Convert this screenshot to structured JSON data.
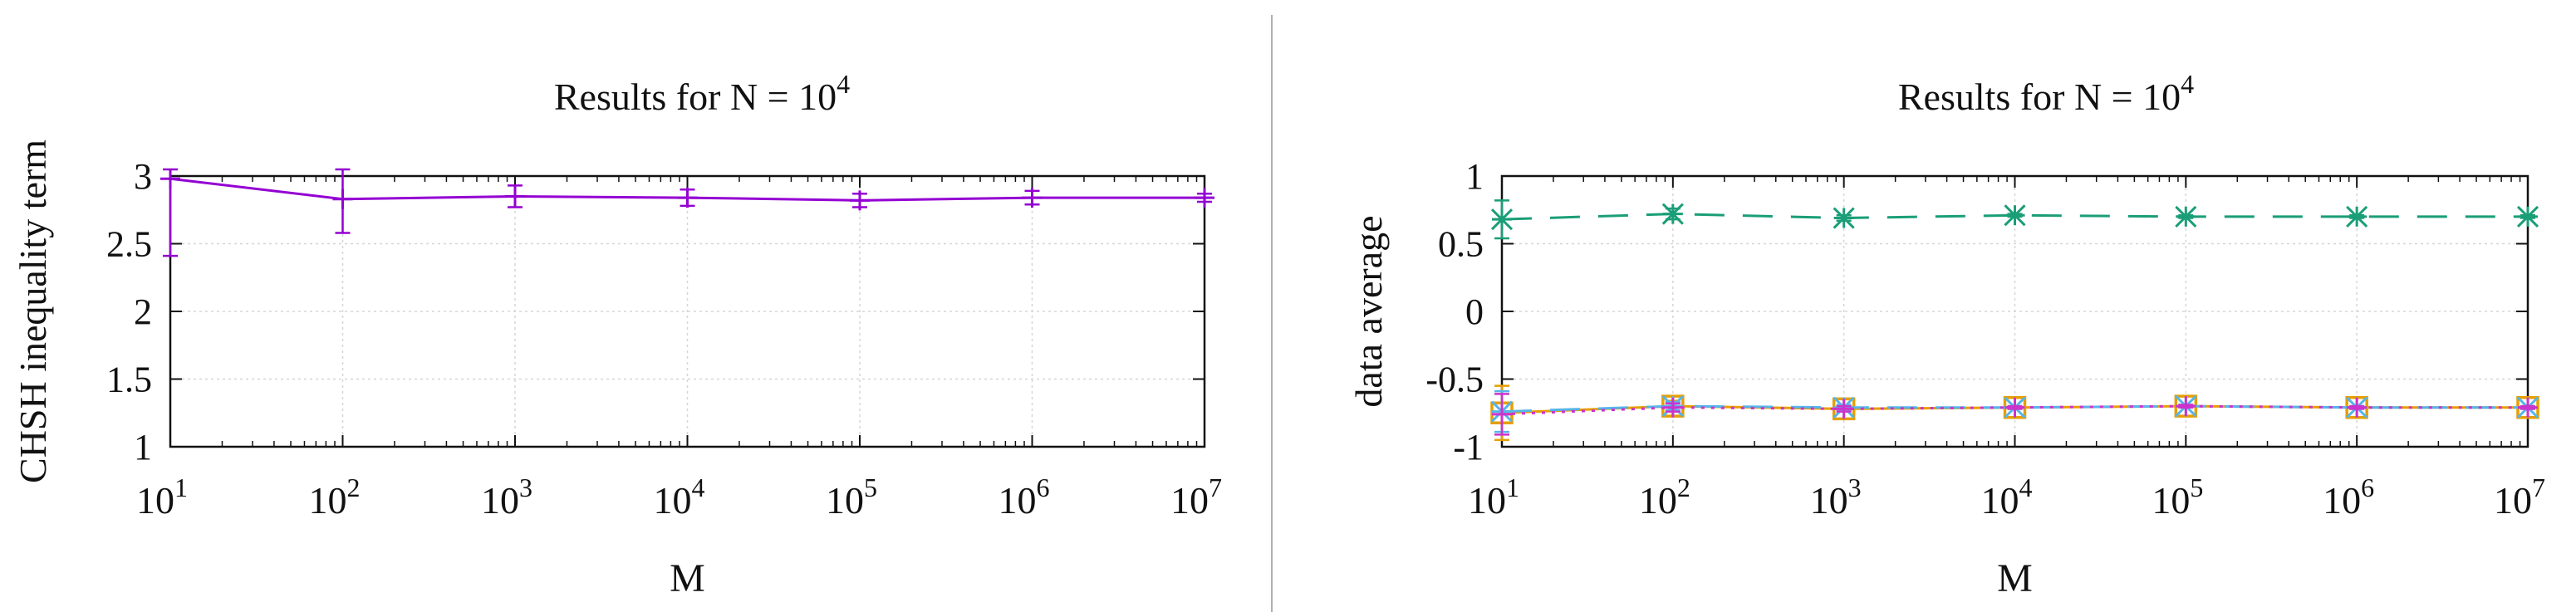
{
  "colors": {
    "chsh": "#9400d3",
    "series_positive": "#1a9e77",
    "series_orange": "#e69f00",
    "series_cyan": "#56b4e9",
    "series_magenta": "#cc33cc",
    "grid": "#d6d6d6",
    "axis": "#111111",
    "divider": "#b0b0b0"
  },
  "chart_data": [
    {
      "type": "line",
      "title": "Results for N = 10",
      "title_exponent": "4",
      "xlabel": "M",
      "ylabel": "CHSH inequality term",
      "xscale": "log",
      "xlim": [
        10,
        10000000
      ],
      "ylim": [
        1,
        3
      ],
      "grid": true,
      "legend": "none",
      "x_ticks": [
        1,
        2,
        3,
        4,
        5,
        6,
        7
      ],
      "x_tick_base": "10",
      "y_ticks": [
        "1",
        "1.5",
        "2",
        "2.5",
        "3"
      ],
      "y_tick_values": [
        1,
        1.5,
        2,
        2.5,
        3
      ],
      "series": [
        {
          "x": [
            10,
            100,
            1000,
            10000,
            100000,
            1000000,
            10000000
          ],
          "values": [
            2.98,
            2.83,
            2.85,
            2.84,
            2.82,
            2.84,
            2.84
          ],
          "error": [
            0.57,
            0.25,
            0.08,
            0.06,
            0.05,
            0.05,
            0.03
          ],
          "style": "solid",
          "marker": "plus",
          "color": "#9400d3"
        }
      ]
    },
    {
      "type": "line",
      "title": "Results for N = 10",
      "title_exponent": "4",
      "xlabel": "M",
      "ylabel": "data average",
      "xscale": "log",
      "xlim": [
        10,
        10000000
      ],
      "ylim": [
        -1,
        1
      ],
      "grid": true,
      "legend": "none",
      "x_ticks": [
        1,
        2,
        3,
        4,
        5,
        6,
        7
      ],
      "x_tick_base": "10",
      "y_ticks": [
        "-1",
        "-0.5",
        "0",
        "0.5",
        "1"
      ],
      "y_tick_values": [
        -1,
        -0.5,
        0,
        0.5,
        1
      ],
      "series": [
        {
          "x": [
            10,
            100,
            1000,
            10000,
            100000,
            1000000,
            10000000
          ],
          "values": [
            0.68,
            0.72,
            0.69,
            0.71,
            0.7,
            0.7,
            0.7
          ],
          "error": [
            0.14,
            0.04,
            0.02,
            0.01,
            0.01,
            0.01,
            0.01
          ],
          "style": "dashed",
          "marker": "star",
          "color": "#1a9e77"
        },
        {
          "x": [
            10,
            100,
            1000,
            10000,
            100000,
            1000000,
            10000000
          ],
          "values": [
            -0.75,
            -0.7,
            -0.72,
            -0.71,
            -0.7,
            -0.71,
            -0.71
          ],
          "error": [
            0.2,
            0.04,
            0.02,
            0.01,
            0.01,
            0.01,
            0.01
          ],
          "style": "solid",
          "marker": "square",
          "color": "#e69f00"
        },
        {
          "x": [
            10,
            100,
            1000,
            10000,
            100000,
            1000000,
            10000000
          ],
          "values": [
            -0.74,
            -0.7,
            -0.71,
            -0.71,
            -0.7,
            -0.71,
            -0.71
          ],
          "error": [
            0.15,
            0.03,
            0.02,
            0.01,
            0.01,
            0.01,
            0.01
          ],
          "style": "dashed",
          "marker": "star",
          "color": "#56b4e9"
        },
        {
          "x": [
            10,
            100,
            1000,
            10000,
            100000,
            1000000,
            10000000
          ],
          "values": [
            -0.76,
            -0.71,
            -0.72,
            -0.71,
            -0.7,
            -0.71,
            -0.71
          ],
          "error": [
            0.15,
            0.03,
            0.02,
            0.01,
            0.01,
            0.01,
            0.01
          ],
          "style": "dotted",
          "marker": "plus",
          "color": "#cc33cc"
        }
      ]
    }
  ]
}
